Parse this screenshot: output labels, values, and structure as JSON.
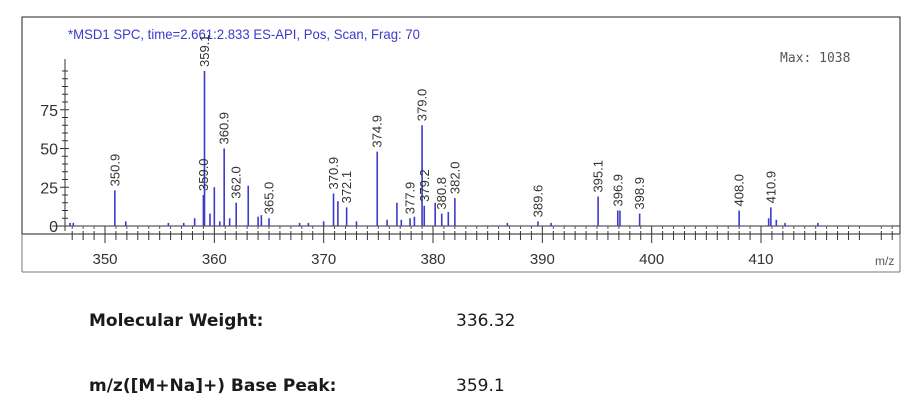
{
  "chart_data": {
    "type": "bar",
    "title": "*MSD1 SPC, time=2.661:2.833   ES-API, Pos, Scan, Frag: 70",
    "max_label": "Max: 1038",
    "x_unit_label": "m/z",
    "xlim": [
      346.5,
      420
    ],
    "ylim": [
      0,
      100
    ],
    "x_ticks": [
      350,
      360,
      370,
      380,
      390,
      400,
      410
    ],
    "y_ticks": [
      0,
      25,
      50,
      75
    ],
    "grid": false,
    "bar_color": "#3a3acc",
    "peaks": [
      {
        "x": 346.8,
        "y": 2,
        "label": ""
      },
      {
        "x": 347.1,
        "y": 2,
        "label": ""
      },
      {
        "x": 350.9,
        "y": 23,
        "label": "350.9"
      },
      {
        "x": 351.9,
        "y": 3,
        "label": ""
      },
      {
        "x": 355.8,
        "y": 2,
        "label": ""
      },
      {
        "x": 357.2,
        "y": 2,
        "label": ""
      },
      {
        "x": 358.2,
        "y": 5,
        "label": ""
      },
      {
        "x": 359.0,
        "y": 20,
        "label": "359.0"
      },
      {
        "x": 359.1,
        "y": 100,
        "label": "359.1"
      },
      {
        "x": 359.6,
        "y": 8,
        "label": ""
      },
      {
        "x": 360.0,
        "y": 25,
        "label": ""
      },
      {
        "x": 360.5,
        "y": 3,
        "label": ""
      },
      {
        "x": 360.9,
        "y": 50,
        "label": "360.9"
      },
      {
        "x": 361.4,
        "y": 5,
        "label": ""
      },
      {
        "x": 362.0,
        "y": 15,
        "label": "362.0"
      },
      {
        "x": 363.1,
        "y": 26,
        "label": ""
      },
      {
        "x": 364.0,
        "y": 6,
        "label": ""
      },
      {
        "x": 364.3,
        "y": 7,
        "label": ""
      },
      {
        "x": 365.0,
        "y": 5,
        "label": "365.0"
      },
      {
        "x": 367.8,
        "y": 2,
        "label": ""
      },
      {
        "x": 368.6,
        "y": 2,
        "label": ""
      },
      {
        "x": 370.0,
        "y": 3,
        "label": ""
      },
      {
        "x": 370.9,
        "y": 21,
        "label": "370.9"
      },
      {
        "x": 371.3,
        "y": 16,
        "label": ""
      },
      {
        "x": 372.1,
        "y": 12,
        "label": "372.1"
      },
      {
        "x": 373.0,
        "y": 3,
        "label": ""
      },
      {
        "x": 374.9,
        "y": 48,
        "label": "374.9"
      },
      {
        "x": 375.8,
        "y": 4,
        "label": ""
      },
      {
        "x": 376.7,
        "y": 15,
        "label": ""
      },
      {
        "x": 377.1,
        "y": 4,
        "label": ""
      },
      {
        "x": 377.9,
        "y": 5,
        "label": "377.9"
      },
      {
        "x": 378.3,
        "y": 6,
        "label": ""
      },
      {
        "x": 379.0,
        "y": 65,
        "label": "379.0"
      },
      {
        "x": 379.2,
        "y": 13,
        "label": "379.2"
      },
      {
        "x": 380.2,
        "y": 15,
        "label": ""
      },
      {
        "x": 380.8,
        "y": 8,
        "label": "380.8"
      },
      {
        "x": 381.4,
        "y": 9,
        "label": ""
      },
      {
        "x": 382.0,
        "y": 18,
        "label": "382.0"
      },
      {
        "x": 386.8,
        "y": 2,
        "label": ""
      },
      {
        "x": 389.6,
        "y": 3,
        "label": "389.6"
      },
      {
        "x": 390.8,
        "y": 2,
        "label": ""
      },
      {
        "x": 395.1,
        "y": 19,
        "label": "395.1"
      },
      {
        "x": 396.9,
        "y": 10,
        "label": "396.9"
      },
      {
        "x": 397.1,
        "y": 10,
        "label": ""
      },
      {
        "x": 398.9,
        "y": 8,
        "label": "398.9"
      },
      {
        "x": 408.0,
        "y": 10,
        "label": "408.0"
      },
      {
        "x": 410.7,
        "y": 5,
        "label": ""
      },
      {
        "x": 410.9,
        "y": 12,
        "label": "410.9"
      },
      {
        "x": 411.4,
        "y": 4,
        "label": ""
      },
      {
        "x": 412.2,
        "y": 2,
        "label": ""
      },
      {
        "x": 415.2,
        "y": 2,
        "label": ""
      }
    ]
  },
  "info": {
    "molecular_weight_label": "Molecular Weight:",
    "molecular_weight_value": "336.32",
    "base_peak_label": "m/z([M+Na]+) Base Peak:",
    "base_peak_value": "359.1"
  }
}
